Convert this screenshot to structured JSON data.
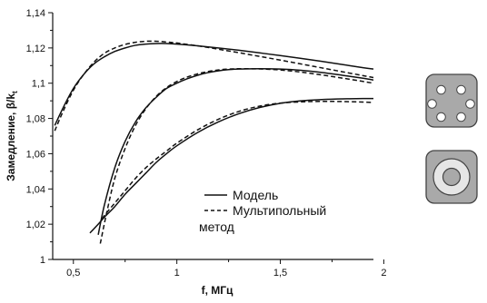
{
  "chart_data": {
    "type": "line",
    "xlabel": "f, МГц",
    "ylabel": "Замедление, β/k",
    "ylabel_sub": "t",
    "xlim": [
      0.4,
      1.95
    ],
    "ylim": [
      1.0,
      1.14
    ],
    "x_ticks": [
      0.5,
      1,
      1.5,
      2
    ],
    "x_tick_labels": [
      "0,5",
      "1",
      "1,5",
      "2"
    ],
    "y_ticks": [
      1.0,
      1.02,
      1.04,
      1.06,
      1.08,
      1.1,
      1.12,
      1.14
    ],
    "y_tick_labels": [
      "1",
      "1,02",
      "1,04",
      "1,06",
      "1,08",
      "1,1",
      "1,12",
      "1,14"
    ],
    "grid": false,
    "legend": {
      "placement": "bottom-center",
      "entries": [
        {
          "label": "Модель",
          "style": "solid"
        },
        {
          "label": "Мультипольный",
          "label_line2": "метод",
          "style": "dashed"
        }
      ]
    },
    "series": [
      {
        "group": "upper",
        "style": "solid",
        "x": [
          0.41,
          0.45,
          0.5,
          0.55,
          0.6,
          0.65,
          0.7,
          0.75,
          0.8,
          0.85,
          0.9,
          0.95,
          1.0,
          1.1,
          1.2,
          1.3,
          1.4,
          1.5,
          1.6,
          1.7,
          1.8,
          1.9,
          1.95
        ],
        "y": [
          1.076,
          1.086,
          1.097,
          1.105,
          1.111,
          1.115,
          1.118,
          1.12,
          1.1215,
          1.1222,
          1.1225,
          1.1225,
          1.1222,
          1.1212,
          1.12,
          1.1187,
          1.1172,
          1.1157,
          1.1141,
          1.1124,
          1.1106,
          1.1088,
          1.108
        ]
      },
      {
        "group": "upper",
        "style": "dashed",
        "x": [
          0.41,
          0.45,
          0.5,
          0.55,
          0.6,
          0.65,
          0.7,
          0.75,
          0.8,
          0.85,
          0.9,
          0.95,
          1.0,
          1.1,
          1.2,
          1.3,
          1.4,
          1.5,
          1.6,
          1.7,
          1.8,
          1.9,
          1.95
        ],
        "y": [
          1.073,
          1.084,
          1.096,
          1.105,
          1.112,
          1.117,
          1.12,
          1.122,
          1.1232,
          1.1238,
          1.1238,
          1.1234,
          1.1228,
          1.1212,
          1.1193,
          1.1173,
          1.1152,
          1.1131,
          1.1109,
          1.1087,
          1.1065,
          1.1043,
          1.1032
        ]
      },
      {
        "group": "middle",
        "style": "solid",
        "x": [
          0.62,
          0.65,
          0.7,
          0.75,
          0.8,
          0.85,
          0.9,
          0.95,
          1.0,
          1.05,
          1.1,
          1.15,
          1.2,
          1.25,
          1.3,
          1.4,
          1.5,
          1.6,
          1.7,
          1.8,
          1.9,
          1.95
        ],
        "y": [
          1.014,
          1.031,
          1.052,
          1.067,
          1.078,
          1.086,
          1.092,
          1.097,
          1.1,
          1.1025,
          1.1045,
          1.106,
          1.107,
          1.1077,
          1.108,
          1.1082,
          1.108,
          1.1073,
          1.1061,
          1.1045,
          1.1028,
          1.1018
        ]
      },
      {
        "group": "middle",
        "style": "dashed",
        "x": [
          0.63,
          0.66,
          0.7,
          0.75,
          0.8,
          0.85,
          0.9,
          0.95,
          1.0,
          1.05,
          1.1,
          1.15,
          1.2,
          1.25,
          1.3,
          1.4,
          1.5,
          1.6,
          1.7,
          1.8,
          1.9,
          1.95
        ],
        "y": [
          1.009,
          1.026,
          1.046,
          1.063,
          1.076,
          1.0855,
          1.0925,
          1.0975,
          1.101,
          1.1035,
          1.1053,
          1.1066,
          1.1075,
          1.108,
          1.1082,
          1.1081,
          1.1075,
          1.1063,
          1.1047,
          1.1029,
          1.101,
          1.1
        ]
      },
      {
        "group": "lower",
        "style": "solid",
        "x": [
          0.58,
          0.62,
          0.65,
          0.7,
          0.75,
          0.8,
          0.85,
          0.9,
          0.95,
          1.0,
          1.1,
          1.2,
          1.3,
          1.4,
          1.5,
          1.6,
          1.7,
          1.8,
          1.9,
          1.95
        ],
        "y": [
          1.015,
          1.02,
          1.024,
          1.03,
          1.037,
          1.043,
          1.049,
          1.055,
          1.06,
          1.0645,
          1.072,
          1.078,
          1.0827,
          1.0862,
          1.0886,
          1.09,
          1.0907,
          1.0911,
          1.0913,
          1.0913
        ]
      },
      {
        "group": "lower",
        "style": "dashed",
        "x": [
          0.64,
          0.65,
          0.7,
          0.75,
          0.8,
          0.85,
          0.9,
          0.95,
          1.0,
          1.1,
          1.2,
          1.3,
          1.4,
          1.5,
          1.6,
          1.7,
          1.8,
          1.9,
          1.95
        ],
        "y": [
          1.023,
          1.025,
          1.032,
          1.039,
          1.046,
          1.052,
          1.057,
          1.0615,
          1.066,
          1.0735,
          1.0795,
          1.084,
          1.087,
          1.0887,
          1.0894,
          1.0897,
          1.0896,
          1.0893,
          1.089
        ]
      }
    ]
  },
  "side_icons": [
    {
      "name": "six-hole-fiber-cross-section",
      "colors": {
        "outer": "#a9a9a9",
        "inner_holes": "#ffffff"
      }
    },
    {
      "name": "coax-fiber-cross-section",
      "colors": {
        "outer": "#a9a9a9",
        "ring": "#e6e6e6",
        "core": "#a9a9a9"
      }
    }
  ],
  "colors": {
    "line": "#111111",
    "axis": "#111111",
    "icon_outline": "#444444"
  }
}
